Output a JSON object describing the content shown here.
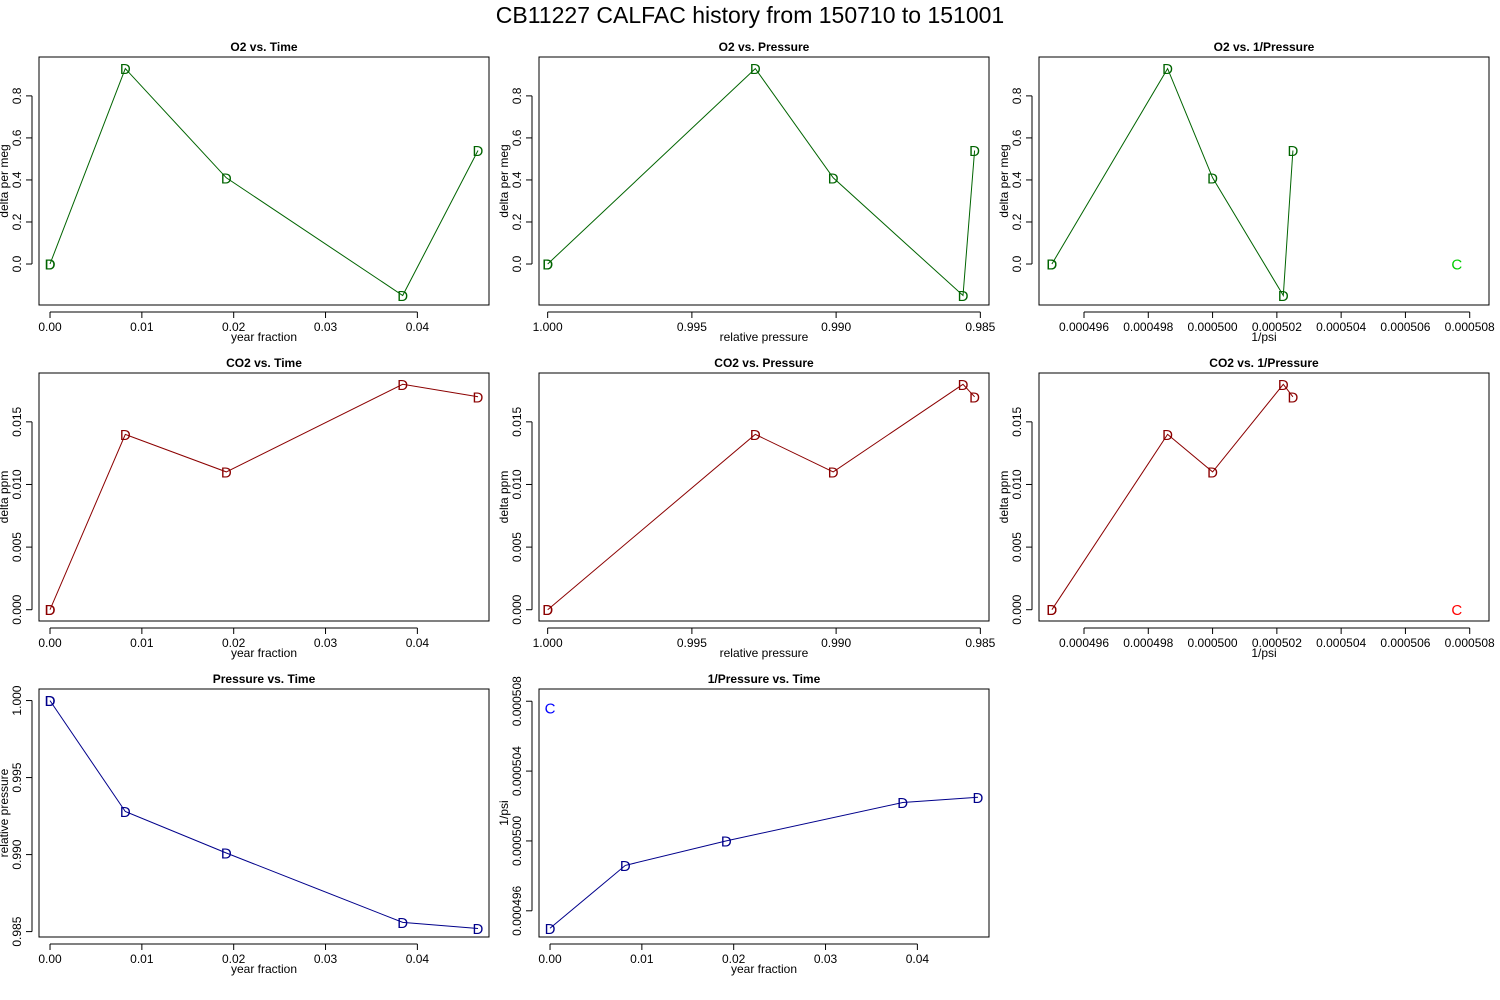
{
  "title": "CB11227   CALFAC history from  150710  to  151001",
  "colors": {
    "o2": "#006400",
    "co2": "#8b0000",
    "p": "#00008b",
    "c_green": "#00cc00",
    "c_red": "#ff0000",
    "c_blue": "#0000ff"
  },
  "chart_data": [
    {
      "id": "o2-time",
      "type": "line",
      "title": "O2 vs. Time",
      "xlabel": "year fraction",
      "ylabel": "delta per meg",
      "color": "o2",
      "xlim": [
        -0.0012,
        0.0478
      ],
      "ylim": [
        -0.195,
        0.985
      ],
      "xticks": [
        0,
        0.01,
        0.02,
        0.03,
        0.04
      ],
      "xticklabels": [
        "0.00",
        "0.01",
        "0.02",
        "0.03",
        "0.04"
      ],
      "yticks": [
        0,
        0.2,
        0.4,
        0.6,
        0.8
      ],
      "yticklabels": [
        "0.0",
        "0.2",
        "0.4",
        "0.6",
        "0.8"
      ],
      "x": [
        0.0,
        0.0,
        0.0082,
        0.0192,
        0.0384,
        0.0466
      ],
      "y": [
        0.0,
        0.0,
        0.93,
        0.41,
        -0.15,
        0.54
      ],
      "markers": [
        "D",
        "D",
        "D",
        "D",
        "D",
        "D"
      ],
      "extra": []
    },
    {
      "id": "o2-pressure",
      "type": "line",
      "title": "O2 vs. Pressure",
      "xlabel": "relative pressure",
      "ylabel": "delta per meg",
      "color": "o2",
      "xlim": [
        1.0003,
        0.9847
      ],
      "ylim": [
        -0.195,
        0.985
      ],
      "xticks": [
        1.0,
        0.995,
        0.99,
        0.985
      ],
      "xticklabels": [
        "1.000",
        "0.995",
        "0.990",
        "0.985"
      ],
      "yticks": [
        0,
        0.2,
        0.4,
        0.6,
        0.8
      ],
      "yticklabels": [
        "0.0",
        "0.2",
        "0.4",
        "0.6",
        "0.8"
      ],
      "x": [
        1.0,
        1.0,
        0.9928,
        0.9901,
        0.9856,
        0.9852
      ],
      "y": [
        0.0,
        0.0,
        0.93,
        0.41,
        -0.15,
        0.54
      ],
      "markers": [
        "D",
        "D",
        "D",
        "D",
        "D",
        "D"
      ],
      "extra": []
    },
    {
      "id": "o2-inv-pressure",
      "type": "line",
      "title": "O2 vs. 1/Pressure",
      "xlabel": "1/psi",
      "ylabel": "delta per meg",
      "color": "o2",
      "xlim": [
        0.0004946,
        0.0005086
      ],
      "ylim": [
        -0.195,
        0.985
      ],
      "xticks": [
        0.000496,
        0.000498,
        0.0005,
        0.000502,
        0.000504,
        0.000506,
        0.000508
      ],
      "xticklabels": [
        "0.000496",
        "0.000498",
        "0.000500",
        "0.000502",
        "0.000504",
        "0.000506",
        "0.000508"
      ],
      "yticks": [
        0,
        0.2,
        0.4,
        0.6,
        0.8
      ],
      "yticklabels": [
        "0.0",
        "0.2",
        "0.4",
        "0.6",
        "0.8"
      ],
      "x": [
        0.000495,
        0.000495,
        0.0004986,
        0.0005,
        0.0005022,
        0.0005025
      ],
      "y": [
        0.0,
        0.0,
        0.93,
        0.41,
        -0.15,
        0.54
      ],
      "markers": [
        "D",
        "D",
        "D",
        "D",
        "D",
        "D"
      ],
      "extra": [
        {
          "x": 0.0005076,
          "y": 0.0,
          "label": "C",
          "color": "c_green"
        }
      ]
    },
    {
      "id": "co2-time",
      "type": "line",
      "title": "CO2 vs. Time",
      "xlabel": "year fraction",
      "ylabel": "delta ppm",
      "color": "co2",
      "xlim": [
        -0.0012,
        0.0478
      ],
      "ylim": [
        -0.0009,
        0.0189
      ],
      "xticks": [
        0,
        0.01,
        0.02,
        0.03,
        0.04
      ],
      "xticklabels": [
        "0.00",
        "0.01",
        "0.02",
        "0.03",
        "0.04"
      ],
      "yticks": [
        0,
        0.005,
        0.01,
        0.015
      ],
      "yticklabels": [
        "0.000",
        "0.005",
        "0.010",
        "0.015"
      ],
      "x": [
        0.0,
        0.0,
        0.0082,
        0.0192,
        0.0384,
        0.0466
      ],
      "y": [
        0.0,
        0.0,
        0.014,
        0.011,
        0.018,
        0.017
      ],
      "markers": [
        "D",
        "D",
        "D",
        "D",
        "D",
        "D"
      ],
      "extra": []
    },
    {
      "id": "co2-pressure",
      "type": "line",
      "title": "CO2 vs. Pressure",
      "xlabel": "relative pressure",
      "ylabel": "delta ppm",
      "color": "co2",
      "xlim": [
        1.0003,
        0.9847
      ],
      "ylim": [
        -0.0009,
        0.0189
      ],
      "xticks": [
        1.0,
        0.995,
        0.99,
        0.985
      ],
      "xticklabels": [
        "1.000",
        "0.995",
        "0.990",
        "0.985"
      ],
      "yticks": [
        0,
        0.005,
        0.01,
        0.015
      ],
      "yticklabels": [
        "0.000",
        "0.005",
        "0.010",
        "0.015"
      ],
      "x": [
        1.0,
        1.0,
        0.9928,
        0.9901,
        0.9856,
        0.9852
      ],
      "y": [
        0.0,
        0.0,
        0.014,
        0.011,
        0.018,
        0.017
      ],
      "markers": [
        "D",
        "D",
        "D",
        "D",
        "D",
        "D"
      ],
      "extra": []
    },
    {
      "id": "co2-inv-pressure",
      "type": "line",
      "title": "CO2 vs. 1/Pressure",
      "xlabel": "1/psi",
      "ylabel": "delta ppm",
      "color": "co2",
      "xlim": [
        0.0004946,
        0.0005086
      ],
      "ylim": [
        -0.0009,
        0.0189
      ],
      "xticks": [
        0.000496,
        0.000498,
        0.0005,
        0.000502,
        0.000504,
        0.000506,
        0.000508
      ],
      "xticklabels": [
        "0.000496",
        "0.000498",
        "0.000500",
        "0.000502",
        "0.000504",
        "0.000506",
        "0.000508"
      ],
      "yticks": [
        0,
        0.005,
        0.01,
        0.015
      ],
      "yticklabels": [
        "0.000",
        "0.005",
        "0.010",
        "0.015"
      ],
      "x": [
        0.000495,
        0.000495,
        0.0004986,
        0.0005,
        0.0005022,
        0.0005025
      ],
      "y": [
        0.0,
        0.0,
        0.014,
        0.011,
        0.018,
        0.017
      ],
      "markers": [
        "D",
        "D",
        "D",
        "D",
        "D",
        "D"
      ],
      "extra": [
        {
          "x": 0.0005076,
          "y": 0.0,
          "label": "C",
          "color": "c_red"
        }
      ]
    },
    {
      "id": "pressure-time",
      "type": "line",
      "title": "Pressure vs. Time",
      "xlabel": "year fraction",
      "ylabel": "relative pressure",
      "color": "p",
      "xlim": [
        -0.0012,
        0.0478
      ],
      "ylim": [
        0.98465,
        1.00075
      ],
      "xticks": [
        0,
        0.01,
        0.02,
        0.03,
        0.04
      ],
      "xticklabels": [
        "0.00",
        "0.01",
        "0.02",
        "0.03",
        "0.04"
      ],
      "yticks": [
        0.985,
        0.99,
        0.995,
        1.0
      ],
      "yticklabels": [
        "0.985",
        "0.990",
        "0.995",
        "1.000"
      ],
      "x": [
        0.0,
        0.0,
        0.0082,
        0.0192,
        0.0384,
        0.0466
      ],
      "y": [
        1.0,
        1.0,
        0.9928,
        0.9901,
        0.9856,
        0.9852
      ],
      "markers": [
        "D",
        "D",
        "D",
        "D",
        "D",
        "D"
      ],
      "extra": []
    },
    {
      "id": "inv-pressure-time",
      "type": "line",
      "title": "1/Pressure vs. Time",
      "xlabel": "year fraction",
      "ylabel": "1/psi",
      "color": "p",
      "xlim": [
        -0.0012,
        0.0478
      ],
      "ylim": [
        0.0004945,
        0.0005087
      ],
      "xticks": [
        0,
        0.01,
        0.02,
        0.03,
        0.04
      ],
      "xticklabels": [
        "0.00",
        "0.01",
        "0.02",
        "0.03",
        "0.04"
      ],
      "yticks": [
        0.000496,
        0.0005,
        0.000504,
        0.000508
      ],
      "yticklabels": [
        "0.000496",
        "0.000500",
        "0.000504",
        "0.000508"
      ],
      "x": [
        0.0,
        0.0082,
        0.0192,
        0.0384,
        0.0466
      ],
      "y": [
        0.000495,
        0.0004986,
        0.0005,
        0.0005022,
        0.0005025
      ],
      "markers": [
        "D",
        "D",
        "D",
        "D",
        "D"
      ],
      "extra": [
        {
          "x": 0.0,
          "y": 0.0005076,
          "label": "C",
          "color": "c_blue"
        }
      ]
    }
  ]
}
